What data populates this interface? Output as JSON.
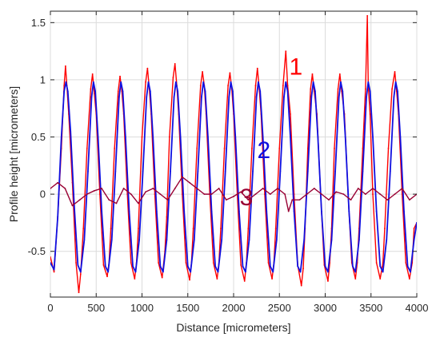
{
  "chart_data": {
    "type": "line",
    "title": "",
    "xlabel": "Distance [micrometers]",
    "ylabel": "Profile height [micrometers]",
    "xlim": [
      0,
      4000
    ],
    "ylim": [
      -0.9,
      1.6
    ],
    "xticks": [
      0,
      500,
      1000,
      1500,
      2000,
      2500,
      3000,
      3500,
      4000
    ],
    "xtick_labels": [
      "0",
      "500",
      "1000",
      "1500",
      "2000",
      "2500",
      "3000",
      "3500",
      "4000"
    ],
    "yticks": [
      -0.5,
      0,
      0.5,
      1,
      1.5
    ],
    "ytick_labels": [
      "-0.5",
      "0",
      "0.5",
      "1",
      "1.5"
    ],
    "grid": true,
    "legend": "none",
    "series": [
      {
        "label": "1",
        "color": "#ff0000",
        "description_visible": "measured profile",
        "x": [
          0,
          40,
          80,
          120,
          150,
          165,
          180,
          200,
          240,
          280,
          310,
          330,
          360,
          400,
          440,
          460,
          480,
          500,
          540,
          580,
          620,
          640,
          660,
          700,
          740,
          760,
          780,
          800,
          840,
          880,
          920,
          940,
          960,
          1000,
          1040,
          1060,
          1080,
          1100,
          1140,
          1180,
          1220,
          1250,
          1270,
          1300,
          1340,
          1360,
          1380,
          1400,
          1440,
          1480,
          1520,
          1540,
          1560,
          1600,
          1640,
          1660,
          1680,
          1700,
          1740,
          1780,
          1820,
          1840,
          1860,
          1900,
          1940,
          1960,
          1980,
          2000,
          2040,
          2080,
          2120,
          2140,
          2160,
          2200,
          2240,
          2260,
          2280,
          2300,
          2340,
          2380,
          2420,
          2440,
          2460,
          2500,
          2540,
          2570,
          2590,
          2620,
          2660,
          2700,
          2740,
          2760,
          2780,
          2810,
          2840,
          2860,
          2880,
          2910,
          2950,
          2990,
          3030,
          3050,
          3070,
          3100,
          3140,
          3160,
          3180,
          3210,
          3250,
          3290,
          3330,
          3350,
          3370,
          3410,
          3440,
          3460,
          3470,
          3490,
          3520,
          3560,
          3600,
          3630,
          3650,
          3690,
          3730,
          3760,
          3780,
          3800,
          3840,
          3880,
          3920,
          3950,
          3970,
          4000
        ],
        "y": [
          -0.55,
          -0.68,
          -0.2,
          0.4,
          0.95,
          1.12,
          0.95,
          0.7,
          0.1,
          -0.6,
          -0.86,
          -0.7,
          -0.3,
          0.4,
          0.92,
          1.05,
          0.88,
          0.7,
          0.0,
          -0.62,
          -0.72,
          -0.6,
          -0.3,
          0.4,
          0.9,
          1.03,
          0.9,
          0.7,
          0.0,
          -0.6,
          -0.74,
          -0.6,
          -0.3,
          0.5,
          0.98,
          1.1,
          0.92,
          0.7,
          0.0,
          -0.6,
          -0.73,
          -0.5,
          -0.2,
          0.5,
          1.02,
          1.14,
          0.95,
          0.7,
          0.0,
          -0.6,
          -0.75,
          -0.6,
          -0.3,
          0.4,
          0.95,
          1.07,
          0.95,
          0.7,
          0.0,
          -0.6,
          -0.74,
          -0.6,
          -0.3,
          0.4,
          0.95,
          1.06,
          0.92,
          0.7,
          0.0,
          -0.62,
          -0.76,
          -0.6,
          -0.3,
          0.4,
          0.95,
          1.1,
          0.92,
          0.7,
          0.0,
          -0.6,
          -0.74,
          -0.6,
          -0.3,
          0.4,
          0.95,
          1.25,
          0.95,
          0.7,
          0.0,
          -0.62,
          -0.8,
          -0.65,
          -0.3,
          0.4,
          0.92,
          1.05,
          0.9,
          0.7,
          0.0,
          -0.62,
          -0.76,
          -0.6,
          -0.3,
          0.4,
          0.92,
          1.05,
          0.9,
          0.7,
          0.0,
          -0.6,
          -0.74,
          -0.6,
          -0.3,
          0.4,
          0.92,
          1.56,
          0.95,
          0.7,
          0.0,
          -0.6,
          -0.74,
          -0.6,
          -0.3,
          0.4,
          0.92,
          1.07,
          0.9,
          0.7,
          0.0,
          -0.6,
          -0.74,
          -0.6,
          -0.3,
          -0.25
        ]
      },
      {
        "label": "2",
        "color": "#1010e0",
        "x": [
          0,
          40,
          80,
          120,
          150,
          170,
          190,
          220,
          260,
          300,
          330,
          370,
          410,
          450,
          470,
          490,
          520,
          560,
          600,
          630,
          670,
          710,
          750,
          770,
          790,
          820,
          860,
          900,
          930,
          970,
          1010,
          1050,
          1070,
          1090,
          1120,
          1160,
          1200,
          1230,
          1270,
          1310,
          1350,
          1370,
          1390,
          1420,
          1460,
          1500,
          1530,
          1570,
          1610,
          1650,
          1670,
          1690,
          1720,
          1760,
          1800,
          1830,
          1870,
          1910,
          1950,
          1970,
          1990,
          2020,
          2060,
          2100,
          2130,
          2170,
          2210,
          2250,
          2270,
          2290,
          2320,
          2360,
          2400,
          2430,
          2470,
          2510,
          2550,
          2570,
          2590,
          2620,
          2660,
          2700,
          2730,
          2770,
          2810,
          2850,
          2870,
          2890,
          2920,
          2960,
          3000,
          3030,
          3070,
          3110,
          3150,
          3170,
          3190,
          3220,
          3260,
          3300,
          3330,
          3370,
          3410,
          3450,
          3470,
          3490,
          3520,
          3560,
          3600,
          3630,
          3670,
          3710,
          3750,
          3770,
          3790,
          3820,
          3860,
          3900,
          3930,
          3970,
          4000
        ],
        "y": [
          -0.6,
          -0.66,
          -0.2,
          0.5,
          0.9,
          0.98,
          0.9,
          0.55,
          -0.1,
          -0.62,
          -0.68,
          -0.4,
          0.2,
          0.85,
          0.98,
          0.9,
          0.5,
          -0.15,
          -0.63,
          -0.68,
          -0.4,
          0.2,
          0.85,
          0.98,
          0.9,
          0.5,
          -0.15,
          -0.63,
          -0.68,
          -0.4,
          0.2,
          0.85,
          0.98,
          0.9,
          0.5,
          -0.15,
          -0.63,
          -0.68,
          -0.4,
          0.2,
          0.85,
          0.98,
          0.9,
          0.5,
          -0.15,
          -0.63,
          -0.68,
          -0.4,
          0.2,
          0.85,
          0.98,
          0.9,
          0.5,
          -0.15,
          -0.63,
          -0.68,
          -0.4,
          0.2,
          0.85,
          0.98,
          0.9,
          0.5,
          -0.15,
          -0.63,
          -0.68,
          -0.4,
          0.2,
          0.85,
          0.98,
          0.9,
          0.5,
          -0.15,
          -0.63,
          -0.68,
          -0.4,
          0.2,
          0.85,
          0.98,
          0.9,
          0.5,
          -0.15,
          -0.63,
          -0.68,
          -0.4,
          0.2,
          0.85,
          0.98,
          0.9,
          0.5,
          -0.15,
          -0.63,
          -0.68,
          -0.4,
          0.2,
          0.85,
          0.98,
          0.9,
          0.5,
          -0.15,
          -0.63,
          -0.68,
          -0.4,
          0.2,
          0.85,
          0.98,
          0.9,
          0.5,
          -0.15,
          -0.63,
          -0.68,
          -0.4,
          0.2,
          0.85,
          0.98,
          0.9,
          0.5,
          -0.15,
          -0.63,
          -0.68,
          -0.4,
          -0.25
        ]
      },
      {
        "label": "3",
        "color": "#990033",
        "x": [
          0,
          80,
          160,
          240,
          320,
          400,
          480,
          560,
          640,
          720,
          800,
          880,
          960,
          1040,
          1120,
          1200,
          1280,
          1360,
          1440,
          1520,
          1600,
          1680,
          1760,
          1840,
          1920,
          2000,
          2080,
          2160,
          2240,
          2320,
          2400,
          2480,
          2560,
          2600,
          2640,
          2720,
          2800,
          2880,
          2960,
          3040,
          3120,
          3200,
          3280,
          3360,
          3440,
          3520,
          3600,
          3680,
          3760,
          3840,
          3920,
          4000
        ],
        "y": [
          0.05,
          0.1,
          0.05,
          -0.1,
          -0.05,
          0.0,
          0.03,
          0.05,
          -0.05,
          -0.08,
          0.05,
          0.0,
          -0.08,
          0.02,
          0.05,
          0.0,
          -0.05,
          0.05,
          0.15,
          0.1,
          0.05,
          0.0,
          0.0,
          0.05,
          -0.05,
          -0.02,
          0.02,
          -0.05,
          0.0,
          0.05,
          0.0,
          0.05,
          0.0,
          -0.15,
          -0.05,
          -0.05,
          0.0,
          0.05,
          0.0,
          -0.05,
          0.02,
          0.0,
          -0.05,
          0.05,
          0.0,
          0.05,
          0.0,
          -0.05,
          0.0,
          0.05,
          -0.05,
          0.0
        ]
      }
    ],
    "annotations": [
      {
        "text": "1",
        "x": 2680,
        "y": 1.1,
        "color": "#ff0000"
      },
      {
        "text": "2",
        "x": 2330,
        "y": 0.37,
        "color": "#1010e0"
      },
      {
        "text": "3",
        "x": 2140,
        "y": -0.04,
        "color": "#990033"
      }
    ]
  }
}
